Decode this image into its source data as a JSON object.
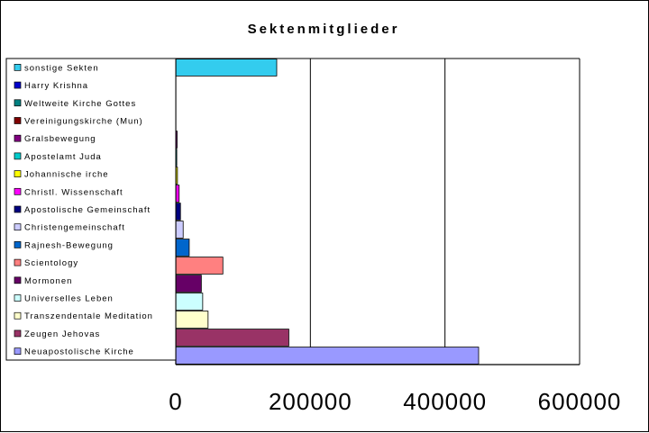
{
  "chart_data": {
    "type": "bar",
    "orientation": "horizontal",
    "title": "Sektenmitglieder",
    "xlim": [
      0,
      600000
    ],
    "xticks": [
      "0",
      "200000",
      "400000",
      "600000"
    ],
    "grid": "vertical",
    "legend_position": "left",
    "series": [
      {
        "name": "sonstige Sekten",
        "value": 150000,
        "color": "#33ccee"
      },
      {
        "name": "Harry Krishna",
        "value": 0,
        "color": "#0000cc"
      },
      {
        "name": "Weltweite Kirche Gottes",
        "value": 0,
        "color": "#008080"
      },
      {
        "name": "Vereinigungskirche (Mun)",
        "value": 0,
        "color": "#800000"
      },
      {
        "name": "Gralsbewegung",
        "value": 2000,
        "color": "#800080"
      },
      {
        "name": "Apostelamt Juda",
        "value": 1500,
        "color": "#00cccc"
      },
      {
        "name": "Johannische irche",
        "value": 2500,
        "color": "#ffff00"
      },
      {
        "name": "Christl. Wissenschaft",
        "value": 5000,
        "color": "#ff00ff"
      },
      {
        "name": "Apostolische Gemeinschaft",
        "value": 7000,
        "color": "#000080"
      },
      {
        "name": "Christengemeinschaft",
        "value": 11000,
        "color": "#ccccff"
      },
      {
        "name": "Rajnesh-Bewegung",
        "value": 20000,
        "color": "#0066cc"
      },
      {
        "name": "Scientology",
        "value": 70000,
        "color": "#ff8080"
      },
      {
        "name": "Mormonen",
        "value": 38000,
        "color": "#660066"
      },
      {
        "name": "Universelles Leben",
        "value": 40000,
        "color": "#ccffff"
      },
      {
        "name": "Transzendentale Meditation",
        "value": 48000,
        "color": "#ffffcc"
      },
      {
        "name": "Zeugen Jehovas",
        "value": 168000,
        "color": "#993366"
      },
      {
        "name": "Neuapostolische Kirche",
        "value": 450000,
        "color": "#9999ff"
      }
    ]
  }
}
